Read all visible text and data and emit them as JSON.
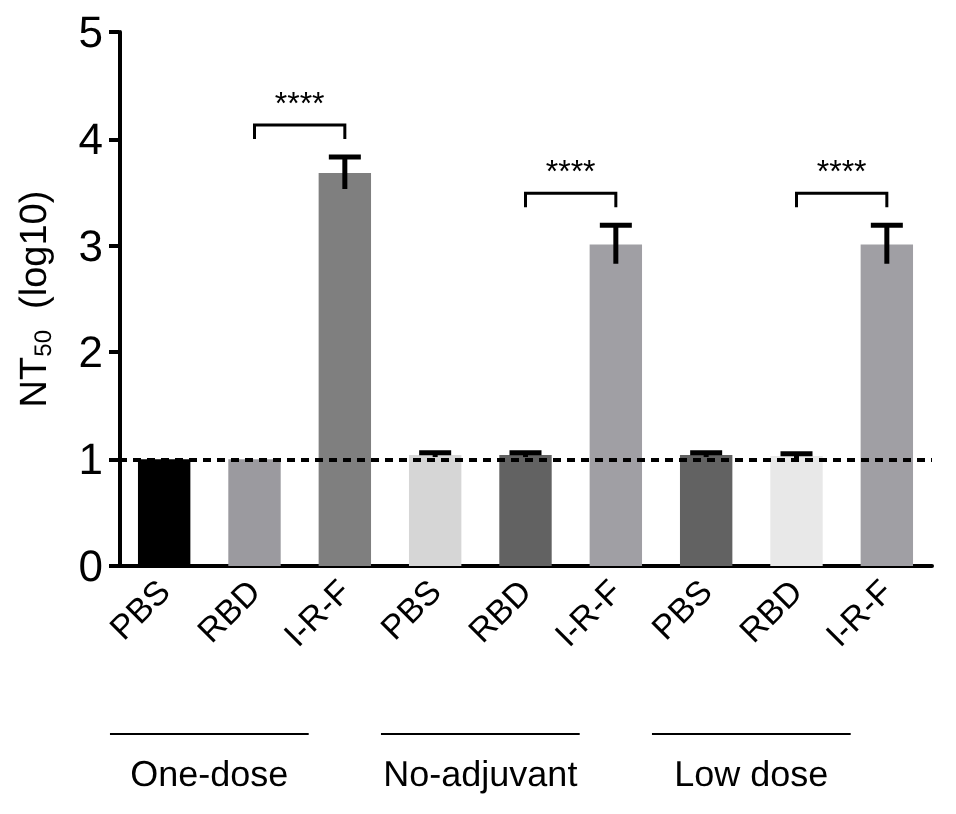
{
  "chart_data": {
    "type": "bar",
    "ylabel": "NT$_{50}$  (log10)",
    "categories": [
      "PBS",
      "RBD",
      "I-R-F",
      "PBS",
      "RBD",
      "I-R-F",
      "PBS",
      "RBD",
      "I-R-F"
    ],
    "values": [
      1.0,
      1.0,
      3.68,
      1.04,
      1.04,
      3.01,
      1.04,
      1.03,
      3.01
    ],
    "errors": [
      null,
      null,
      0.15,
      0.02,
      0.02,
      0.18,
      0.02,
      0.02,
      0.18
    ],
    "colors": [
      "#000000",
      "#9b9a9f",
      "#7f7f7f",
      "#d6d6d6",
      "#626262",
      "#a09fa4",
      "#626262",
      "#e8e8e8",
      "#a09fa4"
    ],
    "ylim": [
      0,
      5
    ],
    "yticks": [
      0,
      1,
      2,
      3,
      4,
      5
    ],
    "ref_lines": [
      {
        "axis": "y",
        "value": 1,
        "line_style": "dashed",
        "color": "#000000"
      }
    ],
    "annotations": [
      "****",
      "****",
      "****",
      "One-dose",
      "No-adjuvant",
      "Low dose"
    ]
  }
}
